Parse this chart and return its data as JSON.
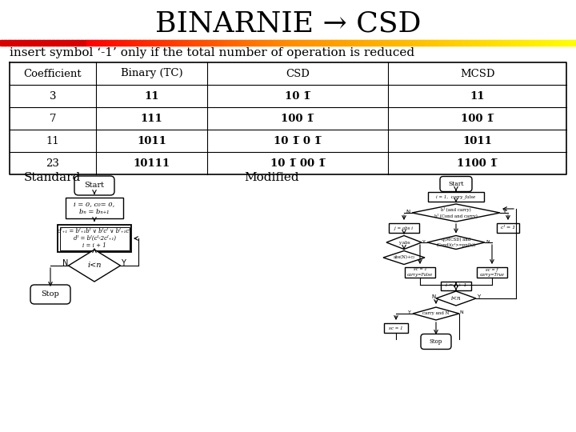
{
  "title": "BINARNIE → CSD",
  "title_fontsize": 26,
  "subtitle": "insert symbol ‘-1’ only if the total number of operation is reduced",
  "subtitle_fontsize": 11,
  "bg_color": "#ffffff",
  "title_color": "#000000",
  "table_headers": [
    "Coefficient",
    "Binary (TC)",
    "CSD",
    "MCSD"
  ],
  "table_data": [
    [
      "3",
      "11",
      "10 1̅",
      "11"
    ],
    [
      "7",
      "111",
      "100 1̅",
      "100 1̅"
    ],
    [
      "11",
      "1011",
      "10 1̅ 0 1̅",
      "1011"
    ],
    [
      "23",
      "10111",
      "10 1̅ 00 1̅",
      "1100 1̅"
    ]
  ],
  "label_standard": "Standard",
  "label_modified": "Modified"
}
